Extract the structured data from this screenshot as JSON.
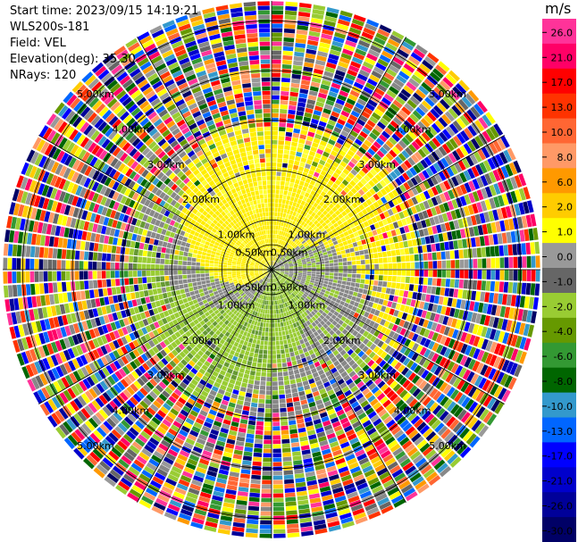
{
  "header": {
    "start_time": "Start time: 2023/09/15 14:19:21",
    "device": "WLS200s-181",
    "field": "Field: VEL",
    "elevation": "Elevation(deg): 35.30",
    "nrays": "NRays: 120"
  },
  "chart_data": {
    "type": "heatmap",
    "projection": "polar-ppi",
    "title": "",
    "colorbar": {
      "unit": "m/s",
      "ticks": [
        "26.0",
        "21.0",
        "17.0",
        "13.0",
        "10.0",
        "8.0",
        "6.0",
        "2.0",
        "1.0",
        "0.0",
        "-1.0",
        "-2.0",
        "-4.0",
        "-6.0",
        "-8.0",
        "-10.0",
        "-13.0",
        "-17.0",
        "-21.0",
        "-26.0",
        "-30.0"
      ],
      "colors": [
        "#ff3399",
        "#ff0066",
        "#ff0000",
        "#ff3300",
        "#ff6633",
        "#ff9966",
        "#ff9900",
        "#ffcc00",
        "#ffff00",
        "#999999",
        "#666666",
        "#99cc33",
        "#669900",
        "#339933",
        "#006600",
        "#3399cc",
        "#0066ff",
        "#0000ff",
        "#0000cc",
        "#000099",
        "#000066"
      ]
    },
    "range_rings_km": [
      0.5,
      1.0,
      2.0,
      3.0,
      4.0,
      5.0
    ],
    "range_ring_labels": [
      "0.50km",
      "1.00km",
      "2.00km",
      "3.00km",
      "4.00km",
      "5.00km"
    ],
    "nrays": 120,
    "palette": {
      "gray": "#888888",
      "green": "#99cc33",
      "darkgreen": "#669933",
      "yellow": "#ffee00",
      "lightyellow": "#ffff33"
    }
  }
}
